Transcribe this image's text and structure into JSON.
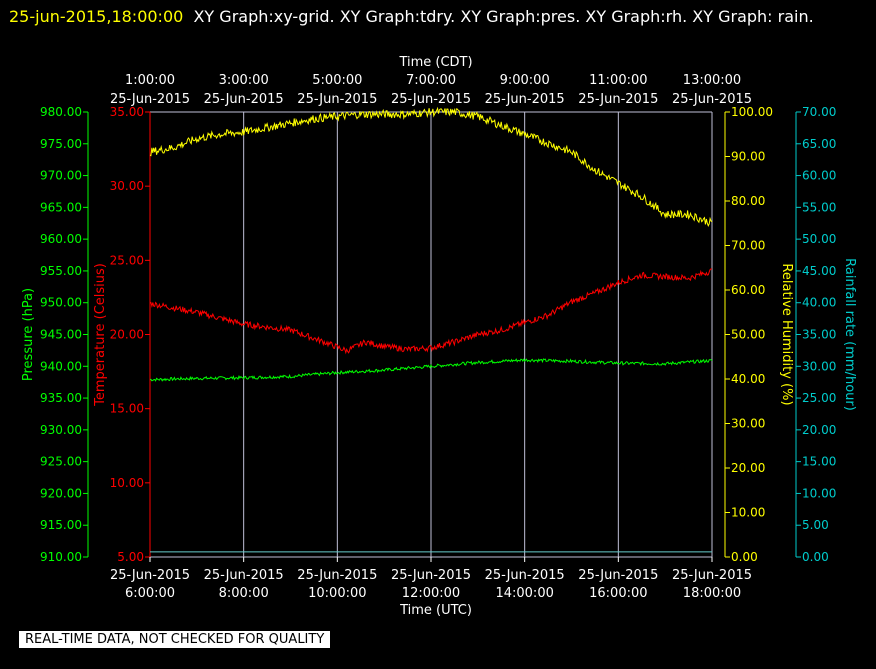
{
  "header": {
    "timestamp": "25-jun-2015,18:00:00",
    "title_rest": "XY Graph:xy-grid.  XY Graph:tdry.  XY Graph:pres.  XY Graph:rh.  XY Graph: rain."
  },
  "notice": "REAL-TIME DATA, NOT CHECKED FOR QUALITY",
  "colors": {
    "pressure": "#00ff00",
    "temperature": "#ff0000",
    "humidity": "#ffff00",
    "rainfall": "#00cccc",
    "grid": "#c0c0d8",
    "axis_text": "#ffffff",
    "rain_trace": "#66cccc"
  },
  "chart_data": {
    "type": "line",
    "top_axis": {
      "label": "Time (CDT)",
      "ticks": [
        {
          "time": "1:00:00",
          "date": "25-Jun-2015"
        },
        {
          "time": "3:00:00",
          "date": "25-Jun-2015"
        },
        {
          "time": "5:00:00",
          "date": "25-Jun-2015"
        },
        {
          "time": "7:00:00",
          "date": "25-Jun-2015"
        },
        {
          "time": "9:00:00",
          "date": "25-Jun-2015"
        },
        {
          "time": "11:00:00",
          "date": "25-Jun-2015"
        },
        {
          "time": "13:00:00",
          "date": "25-Jun-2015"
        }
      ]
    },
    "bottom_axis": {
      "label": "Time (UTC)",
      "range": [
        "6:00:00",
        "18:00:00"
      ],
      "ticks": [
        {
          "date": "25-Jun-2015",
          "time": "6:00:00"
        },
        {
          "date": "25-Jun-2015",
          "time": "8:00:00"
        },
        {
          "date": "25-Jun-2015",
          "time": "10:00:00"
        },
        {
          "date": "25-Jun-2015",
          "time": "12:00:00"
        },
        {
          "date": "25-Jun-2015",
          "time": "14:00:00"
        },
        {
          "date": "25-Jun-2015",
          "time": "16:00:00"
        },
        {
          "date": "25-Jun-2015",
          "time": "18:00:00"
        }
      ]
    },
    "axes": {
      "pressure": {
        "label": "Pressure (hPa)",
        "range": [
          910,
          980
        ],
        "ticks": [
          "910.00",
          "915.00",
          "920.00",
          "925.00",
          "930.00",
          "935.00",
          "940.00",
          "945.00",
          "950.00",
          "955.00",
          "960.00",
          "965.00",
          "970.00",
          "975.00",
          "980.00"
        ]
      },
      "temperature": {
        "label": "Temperature (Celsius)",
        "range": [
          5,
          35
        ],
        "ticks": [
          "5.00",
          "10.00",
          "15.00",
          "20.00",
          "25.00",
          "30.00",
          "35.00"
        ]
      },
      "humidity": {
        "label": "Relative Humidity (%)",
        "range": [
          0,
          100
        ],
        "ticks": [
          "0.00",
          "10.00",
          "20.00",
          "30.00",
          "40.00",
          "50.00",
          "60.00",
          "70.00",
          "80.00",
          "90.00",
          "100.00"
        ]
      },
      "rainfall": {
        "label": "Rainfall rate (mm/hour)",
        "range": [
          0,
          70
        ],
        "ticks": [
          "0.00",
          "5.00",
          "10.00",
          "15.00",
          "20.00",
          "25.00",
          "30.00",
          "35.00",
          "40.00",
          "45.00",
          "50.00",
          "55.00",
          "60.00",
          "65.00",
          "70.00"
        ]
      }
    },
    "grid": "vertical",
    "series": [
      {
        "axis": "pressure",
        "points": [
          [
            6,
            937.9
          ],
          [
            7,
            938.1
          ],
          [
            8,
            938.2
          ],
          [
            9,
            938.4
          ],
          [
            10,
            939.0
          ],
          [
            11,
            939.4
          ],
          [
            12,
            940.0
          ],
          [
            13,
            940.6
          ],
          [
            14,
            941.0
          ],
          [
            15,
            940.8
          ],
          [
            16,
            940.5
          ],
          [
            17,
            940.4
          ],
          [
            18,
            940.9
          ]
        ]
      },
      {
        "axis": "temperature",
        "points": [
          [
            6,
            22.1
          ],
          [
            7,
            21.5
          ],
          [
            8,
            20.7
          ],
          [
            9,
            20.3
          ],
          [
            9.8,
            19.4
          ],
          [
            10.2,
            18.9
          ],
          [
            10.6,
            19.5
          ],
          [
            11,
            19.2
          ],
          [
            11.5,
            19.0
          ],
          [
            12,
            19.1
          ],
          [
            12.5,
            19.5
          ],
          [
            13,
            20.0
          ],
          [
            13.5,
            20.3
          ],
          [
            14,
            20.8
          ],
          [
            14.5,
            21.3
          ],
          [
            15,
            22.2
          ],
          [
            15.5,
            22.8
          ],
          [
            16,
            23.5
          ],
          [
            16.5,
            24.0
          ],
          [
            17,
            23.9
          ],
          [
            17.5,
            23.8
          ],
          [
            18,
            24.3
          ]
        ]
      },
      {
        "axis": "humidity",
        "points": [
          [
            6,
            91.0
          ],
          [
            6.5,
            92.0
          ],
          [
            7,
            94.0
          ],
          [
            7.5,
            95.0
          ],
          [
            8,
            95.5
          ],
          [
            8.5,
            96.5
          ],
          [
            9,
            97.5
          ],
          [
            9.5,
            98.5
          ],
          [
            10,
            99.0
          ],
          [
            10.5,
            99.5
          ],
          [
            11,
            99.5
          ],
          [
            11.5,
            99.5
          ],
          [
            12,
            100.0
          ],
          [
            12.5,
            100.0
          ],
          [
            13,
            99.0
          ],
          [
            13.5,
            97.0
          ],
          [
            14,
            95.0
          ],
          [
            14.5,
            93.0
          ],
          [
            15,
            91.0
          ],
          [
            15.5,
            87.0
          ],
          [
            16,
            84.0
          ],
          [
            16.5,
            81.0
          ],
          [
            17,
            77.0
          ],
          [
            17.5,
            77.0
          ],
          [
            18,
            75.0
          ]
        ]
      },
      {
        "axis": "rainfall",
        "points": [
          [
            6,
            0.8
          ],
          [
            18,
            0.8
          ]
        ]
      }
    ]
  }
}
